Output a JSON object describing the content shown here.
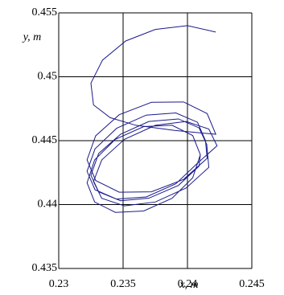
{
  "chart_data": {
    "type": "line",
    "xlabel": "x, m",
    "ylabel": "y, m",
    "xlim": [
      0.23,
      0.245
    ],
    "xticks": [
      0.23,
      0.235,
      0.24,
      0.245
    ],
    "ylim": [
      0.435,
      0.455
    ],
    "yticks": [
      0.435,
      0.44,
      0.445,
      0.45,
      0.455
    ],
    "grid": true,
    "series": [
      {
        "color": "#1a1a8c",
        "x": [
          0.2422,
          0.24,
          0.2375,
          0.2352,
          0.2334,
          0.2325,
          0.2327,
          0.234,
          0.236,
          0.239,
          0.2422,
          0.24153,
          0.2397,
          0.2372,
          0.2347,
          0.23287,
          0.2322,
          0.23287,
          0.2347,
          0.2372,
          0.2397,
          0.24153,
          0.2414,
          0.24078,
          0.2391,
          0.2368,
          0.2345,
          0.23282,
          0.2322,
          0.23282,
          0.2345,
          0.2368,
          0.2391,
          0.24078,
          0.2423,
          0.24166,
          0.2399,
          0.2375,
          0.2351,
          0.23334,
          0.2327,
          0.23334,
          0.2351,
          0.2375,
          0.2399,
          0.24166,
          0.2415,
          0.2409,
          0.2393,
          0.237,
          0.2348,
          0.2331,
          0.2325,
          0.2331,
          0.2348,
          0.237,
          0.2393,
          0.2409,
          0.241,
          0.24041,
          0.2388,
          0.2366,
          0.2344,
          0.23279,
          0.2322,
          0.23279,
          0.2344,
          0.2366,
          0.2388,
          0.24041,
          0.241
        ],
        "values": [
          0.4535,
          0.454,
          0.4537,
          0.4528,
          0.4513,
          0.4495,
          0.4478,
          0.4468,
          0.4462,
          0.4458,
          0.4455,
          0.44712,
          0.44803,
          0.448,
          0.44703,
          0.44538,
          0.4435,
          0.44188,
          0.44097,
          0.441,
          0.44197,
          0.44362,
          0.445,
          0.44644,
          0.44717,
          0.447,
          0.44597,
          0.44436,
          0.4426,
          0.44116,
          0.44043,
          0.4406,
          0.44163,
          0.44324,
          0.4446,
          0.44591,
          0.4465,
          0.4462,
          0.4451,
          0.44349,
          0.4418,
          0.44049,
          0.4399,
          0.4402,
          0.4413,
          0.44291,
          0.4447,
          0.446,
          0.4467,
          0.4465,
          0.4455,
          0.444,
          0.4423,
          0.441,
          0.4403,
          0.4405,
          0.4415,
          0.443,
          0.4439,
          0.4454,
          0.44621,
          0.4461,
          0.44511,
          0.4435,
          0.4417,
          0.4402,
          0.43939,
          0.4395,
          0.44049,
          0.4421,
          0.4439
        ]
      }
    ]
  }
}
